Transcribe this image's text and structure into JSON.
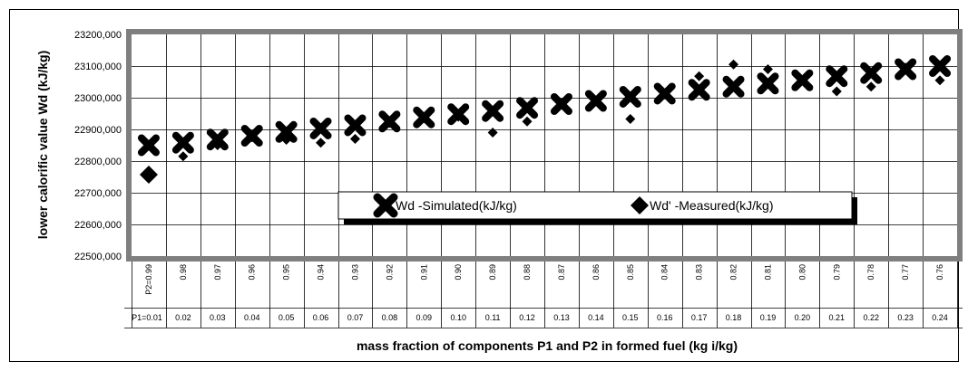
{
  "chart_data": {
    "type": "scatter",
    "ylabel": "lower calorific value Wd (kJ/kg)",
    "xlabel": "mass fraction of components  P1 and P2 in formed fuel (kg i/kg)",
    "ylim": [
      22500,
      23200
    ],
    "y_ticks": [
      22500,
      22600,
      22700,
      22800,
      22900,
      23000,
      23100,
      23200
    ],
    "y_tick_labels": [
      "22500,000",
      "22600,000",
      "22700,000",
      "22800,000",
      "22900,000",
      "23000,000",
      "23100,000",
      "23200,000"
    ],
    "categories_p2": [
      "P2=0.99",
      "0.98",
      "0.97",
      "0.96",
      "0.95",
      "0.94",
      "0.93",
      "0.92",
      "0.91",
      "0.90",
      "0.89",
      "0.88",
      "0.87",
      "0.86",
      "0.85",
      "0.84",
      "0.83",
      "0.82",
      "0.81",
      "0.80",
      "0.79",
      "0.78",
      "0.77",
      "0.76"
    ],
    "categories_p1": [
      "P1=0.01",
      "0.02",
      "0.03",
      "0.04",
      "0.05",
      "0.06",
      "0.07",
      "0.08",
      "0.09",
      "0.10",
      "0.11",
      "0.12",
      "0.13",
      "0.14",
      "0.15",
      "0.16",
      "0.17",
      "0.18",
      "0.19",
      "0.20",
      "0.21",
      "0.22",
      "0.23",
      "0.24"
    ],
    "grid": true,
    "legend_position": "inside-lower-right",
    "series": [
      {
        "name": "Wd -Simulated(kJ/kg)",
        "marker": "cross-x",
        "color": "#000000",
        "values": [
          22850,
          22858,
          22868,
          22880,
          22892,
          22903,
          22913,
          22925,
          22938,
          22948,
          22958,
          22968,
          22980,
          22990,
          23003,
          23013,
          23025,
          23035,
          23045,
          23055,
          23068,
          23078,
          23090,
          23100
        ]
      },
      {
        "name": "Wd' -Measured(kJ/kg)",
        "marker": "diamond",
        "color": "#000000",
        "values": [
          22757,
          22815,
          22850,
          22875,
          22867,
          22858,
          22870,
          22920,
          22935,
          22940,
          22890,
          22925,
          22980,
          22990,
          22933,
          23010,
          23068,
          23105,
          23090,
          23055,
          23020,
          23035,
          23095,
          23055
        ]
      }
    ]
  },
  "colors": {
    "plot_frame": "#7f7f7f",
    "plot_background": "#ffffff",
    "gridline": "#000000",
    "marker": "#000000"
  }
}
